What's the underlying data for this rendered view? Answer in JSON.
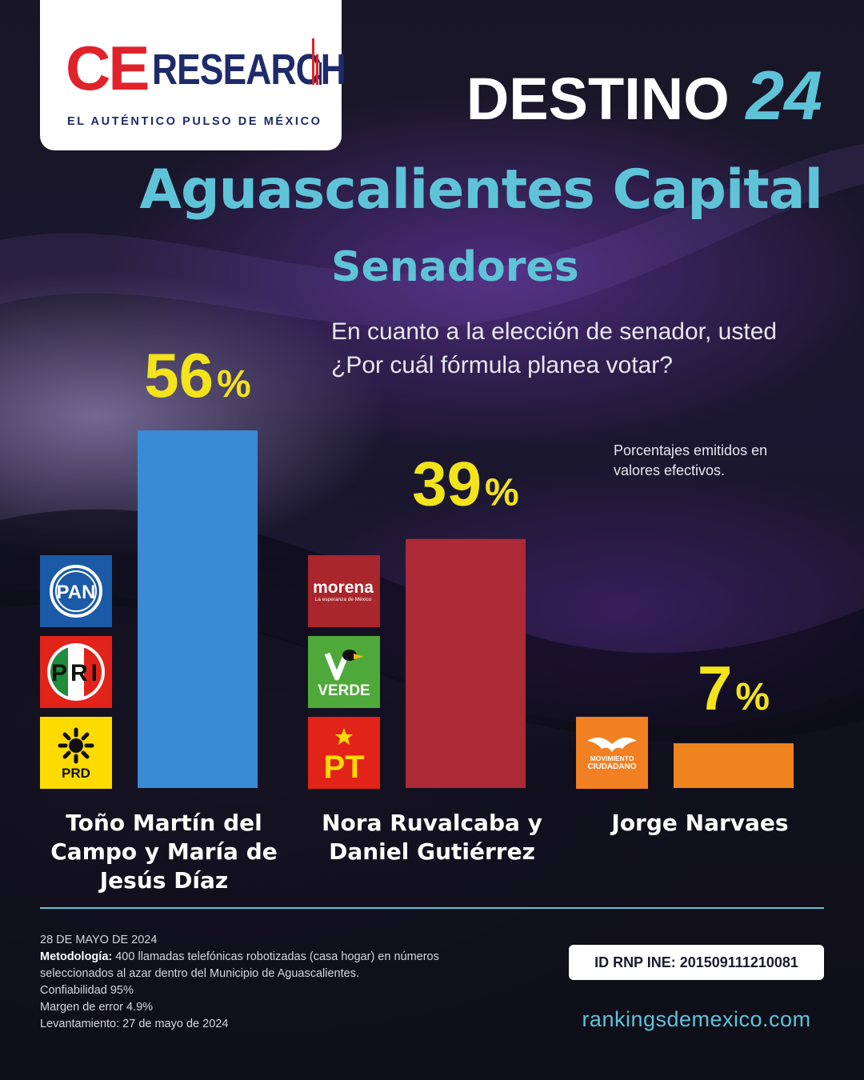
{
  "brand": {
    "logo_ce": "CE",
    "logo_research": "RESEARCH",
    "tagline": "EL AUTÉNTICO PULSO DE MÉXICO"
  },
  "header": {
    "destino_text": "DESTINO",
    "destino_number": "24",
    "place": "Aguascalientes Capital",
    "section": "Senadores",
    "question": "En cuanto a la elección de senador, usted ¿Por cuál fórmula planea votar?",
    "note": "Porcentajes emitidos en valores efectivos."
  },
  "parties": {
    "pan": "PAN",
    "pri": "PRI",
    "prd": "PRD",
    "morena": "morena",
    "morena_sub": "La esperanza de México",
    "verde": "VERDE",
    "pt": "PT",
    "mc_line1": "MOVIMIENTO",
    "mc_line2": "CIUDADANO"
  },
  "colors": {
    "accent": "#5fc3d8",
    "label_yellow": "#f2e31b",
    "pan_blue": "#1b5aa6",
    "pri_red": "#e2231a",
    "prd_yellow": "#fddb00",
    "morena_red": "#a8262c",
    "verde_green": "#4fa93a",
    "pt_red": "#e2231a",
    "mc_orange": "#f08022"
  },
  "chart_data": {
    "type": "bar",
    "categories": [
      "Toño Martín del Campo y María de Jesús Díaz",
      "Nora Ruvalcaba y Daniel Gutiérrez",
      "Jorge Narvaes"
    ],
    "values": [
      56,
      39,
      7
    ],
    "labels": [
      "56",
      "39",
      "7"
    ],
    "unit": "%",
    "colors": [
      "#3a8bd6",
      "#ad2a37",
      "#ef841e"
    ],
    "ylim": [
      0,
      56
    ],
    "grid": false,
    "legend": "none"
  },
  "footer": {
    "date": "28 DE MAYO DE 2024",
    "method_label": "Metodología:",
    "method_text": " 400 llamadas telefónicas robotizadas (casa hogar) en números seleccionados al azar dentro del Municipio de Aguascalientes.",
    "confidence": "Confiabilidad 95%",
    "margin": "Margen de error 4.9%",
    "fieldwork": "Levantamiento: 27 de mayo de 2024",
    "rnp": "ID RNP INE:  201509111210081",
    "website": "rankingsdemexico.com"
  }
}
